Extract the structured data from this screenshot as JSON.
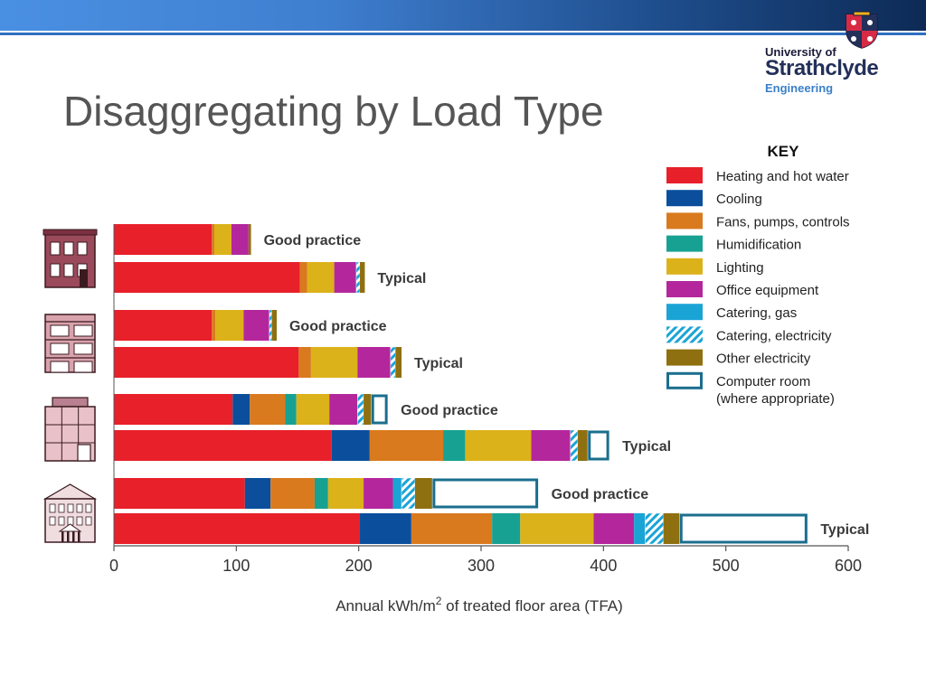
{
  "slide": {
    "title": "Disaggregating by Load Type"
  },
  "logo": {
    "line1": "University of",
    "line2": "Strathclyde",
    "line3": "Engineering"
  },
  "colors": {
    "banner_start": "#4a90e2",
    "banner_end": "#0d2a55",
    "outline": "#1a6e8e"
  },
  "chart_data": {
    "type": "bar",
    "orientation": "horizontal",
    "stacked": true,
    "xlabel_main": "Annual kWh/m",
    "xlabel_sup": "2",
    "xlabel_rest": " of treated floor area (TFA)",
    "xlim": [
      0,
      600
    ],
    "xticks": [
      0,
      100,
      200,
      300,
      400,
      500,
      600
    ],
    "grid": false,
    "legend_title": "KEY",
    "legend_position": "top-right",
    "categories": [
      {
        "name": "Heating and hot water",
        "color": "#e8202a",
        "pattern": "solid"
      },
      {
        "name": "Cooling",
        "color": "#0b4f9c",
        "pattern": "solid"
      },
      {
        "name": "Fans, pumps, controls",
        "color": "#d97a1e",
        "pattern": "solid"
      },
      {
        "name": "Humidification",
        "color": "#17a192",
        "pattern": "solid"
      },
      {
        "name": "Lighting",
        "color": "#dcb21a",
        "pattern": "solid"
      },
      {
        "name": "Office equipment",
        "color": "#b4279c",
        "pattern": "solid"
      },
      {
        "name": "Catering, gas",
        "color": "#1aa4d6",
        "pattern": "solid"
      },
      {
        "name": "Catering, electricity",
        "color": "#1aa4d6",
        "pattern": "hatch"
      },
      {
        "name": "Other electricity",
        "color": "#8f7010",
        "pattern": "solid"
      },
      {
        "name": "Computer room",
        "sublabel": "(where appropriate)",
        "color": "#1a6e8e",
        "pattern": "outline"
      }
    ],
    "groups": [
      {
        "building": "building-1",
        "bars": [
          {
            "label": "Good practice",
            "values": [
              80,
              0,
              2,
              0,
              14,
              14,
              0,
              0,
              2,
              0
            ]
          },
          {
            "label": "Typical",
            "values": [
              152,
              0,
              6,
              0,
              22,
              18,
              0,
              3,
              4,
              0
            ]
          }
        ]
      },
      {
        "building": "building-2",
        "bars": [
          {
            "label": "Good practice",
            "values": [
              80,
              0,
              3,
              0,
              23,
              21,
              0,
              2,
              4,
              0
            ]
          },
          {
            "label": "Typical",
            "values": [
              151,
              0,
              10,
              0,
              38,
              27,
              0,
              4,
              5,
              0
            ]
          }
        ]
      },
      {
        "building": "building-3",
        "bars": [
          {
            "label": "Good practice",
            "values": [
              97,
              14,
              29,
              9,
              27,
              23,
              0,
              5,
              6,
              14
            ]
          },
          {
            "label": "Typical",
            "values": [
              178,
              31,
              60,
              18,
              54,
              32,
              0,
              6,
              8,
              18
            ]
          }
        ]
      },
      {
        "building": "building-4",
        "bars": [
          {
            "label": "Good practice",
            "values": [
              107,
              21,
              36,
              11,
              29,
              24,
              7,
              11,
              14,
              87
            ]
          },
          {
            "label": "Typical",
            "values": [
              201,
              42,
              66,
              23,
              60,
              33,
              9,
              15,
              13,
              105
            ]
          }
        ]
      }
    ]
  }
}
